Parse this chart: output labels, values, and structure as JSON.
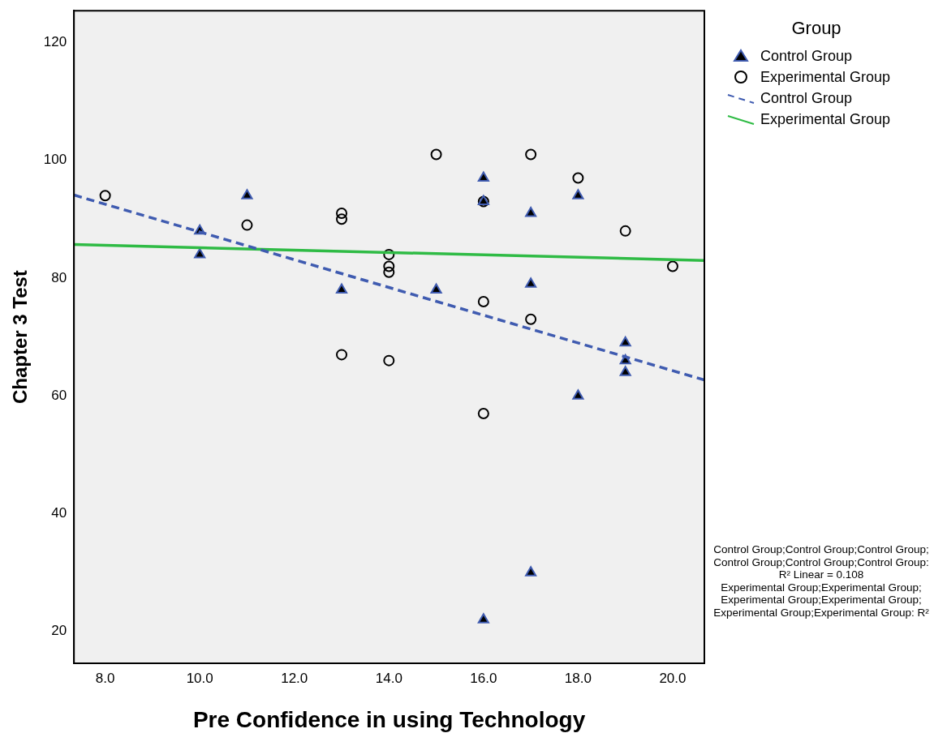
{
  "chart_data": {
    "type": "scatter",
    "xlabel": "Pre Confidence in using Technology",
    "ylabel": "Chapter 3 Test",
    "legend_title": "Group",
    "legend": "right",
    "grid": false,
    "xlim": [
      7.34,
      20.67
    ],
    "ylim": [
      14.6,
      125.4
    ],
    "xticks": [
      {
        "value": 8,
        "label": "8.0"
      },
      {
        "value": 10,
        "label": "10.0"
      },
      {
        "value": 12,
        "label": "12.0"
      },
      {
        "value": 14,
        "label": "14.0"
      },
      {
        "value": 16,
        "label": "16.0"
      },
      {
        "value": 18,
        "label": "18.0"
      },
      {
        "value": 20,
        "label": "20.0"
      }
    ],
    "yticks": [
      20,
      40,
      60,
      80,
      100,
      120
    ],
    "series": [
      {
        "name": "Control Group",
        "type": "scatter",
        "marker": "triangle",
        "color": "#3f5bb0",
        "x": [
          10,
          10,
          11,
          13,
          15,
          16,
          16,
          16,
          17,
          17,
          17,
          18,
          18,
          19,
          19,
          19
        ],
        "values": [
          88,
          84,
          94,
          78,
          78,
          97,
          93,
          22,
          91,
          79,
          30,
          94,
          60,
          69,
          66,
          64
        ]
      },
      {
        "name": "Experimental Group",
        "type": "scatter",
        "marker": "circle",
        "color": "#000000",
        "x": [
          8,
          11,
          13,
          13,
          13,
          14,
          14,
          14,
          14,
          15,
          16,
          16,
          16,
          17,
          17,
          18,
          19,
          20
        ],
        "values": [
          94,
          89,
          91,
          90,
          67,
          84,
          82,
          81,
          66,
          101,
          93,
          76,
          57,
          101,
          73,
          97,
          88,
          82
        ]
      },
      {
        "name": "Control Group",
        "type": "line",
        "marker": "none",
        "line_style": "dashed",
        "color": "#3f5bb0",
        "x": [
          7.34,
          20.67
        ],
        "values": [
          94.1,
          62.7
        ]
      },
      {
        "name": "Experimental Group",
        "type": "line",
        "marker": "none",
        "line_style": "solid",
        "color": "#2fbb45",
        "x": [
          7.34,
          20.67
        ],
        "values": [
          85.7,
          83.0
        ]
      }
    ],
    "annotations": [
      "Control Group;Control Group;Control Group;\nControl Group;Control Group;Control Group:\nR² Linear = 0.108\nExperimental Group;Experimental Group;\nExperimental Group;Experimental Group;\nExperimental Group;Experimental Group: R²"
    ]
  }
}
